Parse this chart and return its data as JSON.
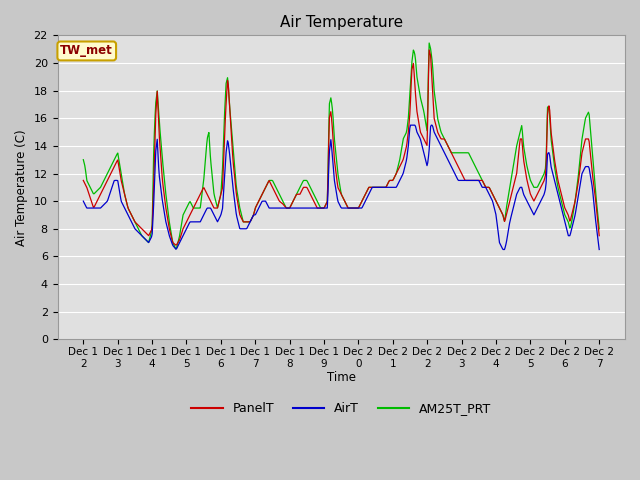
{
  "title": "Air Temperature",
  "ylabel": "Air Temperature (C)",
  "xlabel": "Time",
  "annotation": "TW_met",
  "annotation_color": "#8B0000",
  "annotation_bg": "#FFFACD",
  "annotation_border": "#C8A000",
  "legend_labels": [
    "PanelT",
    "AirT",
    "AM25T_PRT"
  ],
  "line_colors": [
    "#CC0000",
    "#0000CC",
    "#00BB00"
  ],
  "fig_bg_color": "#C8C8C8",
  "plot_bg_color": "#E0E0E0",
  "grid_color": "#FFFFFF",
  "ylim": [
    0,
    22
  ],
  "yticks": [
    0,
    2,
    4,
    6,
    8,
    10,
    12,
    14,
    16,
    18,
    20,
    22
  ],
  "xtick_labels": [
    "Dec 12",
    "Dec 13",
    "Dec 14",
    "Dec 15",
    "Dec 16",
    "Dec 17",
    "Dec 18",
    "Dec 19",
    "Dec 20",
    "Dec 21",
    "Dec 22",
    "Dec 23",
    "Dec 24",
    "Dec 25",
    "Dec 26",
    "Dec 27"
  ],
  "figsize": [
    6.4,
    4.8
  ],
  "dpi": 100
}
